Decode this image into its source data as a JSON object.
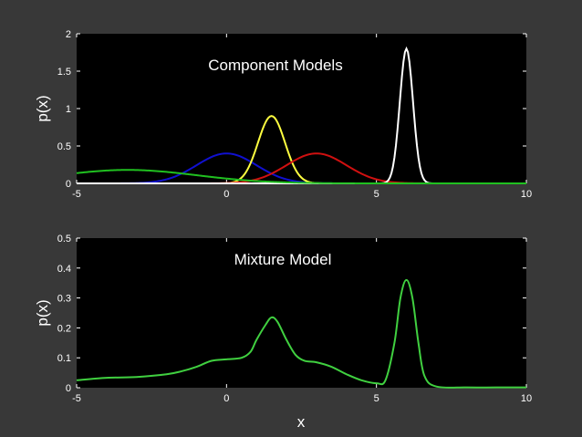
{
  "chart_data": [
    {
      "type": "line",
      "title": "Component Models",
      "xlabel": "",
      "ylabel": "p(x)",
      "xlim": [
        -5,
        10
      ],
      "ylim": [
        0,
        2
      ],
      "xticks": [
        -5,
        0,
        5,
        10
      ],
      "yticks": [
        0,
        0.5,
        1,
        1.5,
        2
      ],
      "ytick_labels": [
        "0",
        "0.5",
        "1",
        "1.5",
        "2"
      ],
      "background": "#000000",
      "grid": false,
      "components": [
        {
          "color": "#1010d0",
          "shape": "gaussian",
          "mean": 0,
          "sd": 1,
          "peak": 0.4
        },
        {
          "color": "#ffff40",
          "shape": "gaussian",
          "mean": 1.5,
          "sd": 0.45,
          "peak": 0.9
        },
        {
          "color": "#d01010",
          "shape": "gaussian",
          "mean": 3,
          "sd": 1,
          "peak": 0.4
        },
        {
          "color": "#ffffff",
          "shape": "gaussian",
          "mean": 6,
          "sd": 0.22,
          "peak": 1.8
        },
        {
          "color": "#20c020",
          "shape": "gaussian",
          "mean": -3.3,
          "sd": 2.3,
          "peak": 0.18
        }
      ]
    },
    {
      "type": "line",
      "title": "Mixture Model",
      "xlabel": "x",
      "ylabel": "p(x)",
      "xlim": [
        -5,
        10
      ],
      "ylim": [
        0,
        0.5
      ],
      "xticks": [
        -5,
        0,
        5,
        10
      ],
      "yticks": [
        0,
        0.1,
        0.2,
        0.3,
        0.4,
        0.5
      ],
      "ytick_labels": [
        "0",
        "0.1",
        "0.2",
        "0.3",
        "0.4",
        "0.5"
      ],
      "background": "#000000",
      "grid": false,
      "series": [
        {
          "color": "#40d040",
          "x": [
            -5,
            -4,
            -3,
            -2,
            -1.5,
            -1,
            -0.5,
            0,
            0.5,
            0.8,
            1,
            1.3,
            1.5,
            1.7,
            2,
            2.3,
            2.6,
            3,
            3.5,
            4,
            4.5,
            5,
            5.3,
            5.6,
            5.8,
            6,
            6.2,
            6.4,
            6.6,
            7,
            8,
            9,
            10
          ],
          "y": [
            0.025,
            0.033,
            0.036,
            0.045,
            0.055,
            0.07,
            0.09,
            0.095,
            0.1,
            0.12,
            0.16,
            0.21,
            0.235,
            0.22,
            0.16,
            0.11,
            0.09,
            0.085,
            0.07,
            0.045,
            0.025,
            0.015,
            0.025,
            0.15,
            0.3,
            0.36,
            0.3,
            0.15,
            0.04,
            0.004,
            0.001,
            0.001,
            0.001
          ]
        }
      ]
    }
  ]
}
